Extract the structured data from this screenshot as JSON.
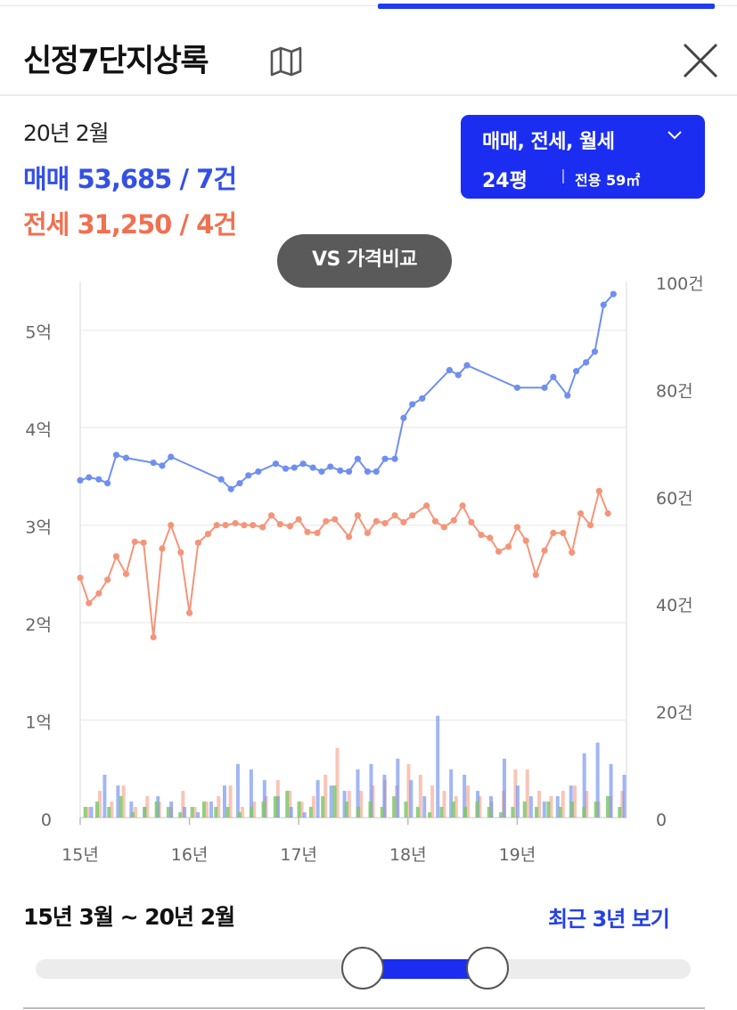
{
  "header": {
    "title": "신정7단지상록",
    "close_label": "close"
  },
  "summary": {
    "date": "20년 2월",
    "sale": "매매 53,685 / 7건",
    "jeonse": "전세 31,250 / 4건"
  },
  "filter": {
    "types": "매매, 전세, 월세",
    "size": "24평",
    "area": "전용 59㎡"
  },
  "vs_label": "VS 가격비교",
  "colors": {
    "accent": "#1a2df0",
    "sale": "#3450e6",
    "sale_line": "#6f8ff0",
    "jeonse": "#f07050",
    "jeonse_line": "#f4957a",
    "volume_green": "#7cc86a"
  },
  "icons": [
    "map-icon",
    "close-icon",
    "chevron-down-icon"
  ],
  "chart_data": {
    "type": "line",
    "x_ticks": [
      "15년",
      "16년",
      "17년",
      "18년",
      "19년"
    ],
    "y_left_ticks": [
      "0",
      "1억",
      "2억",
      "3억",
      "4억",
      "5억"
    ],
    "y_left_range": [
      0,
      5.5
    ],
    "y_right_ticks": [
      "0",
      "20건",
      "40건",
      "60건",
      "80건",
      "100건"
    ],
    "y_right_range": [
      0,
      100
    ],
    "grid": true,
    "x_range": [
      2015.0,
      2020.0
    ],
    "series": [
      {
        "key": "sale",
        "color": "#6f8ff0",
        "points": [
          [
            2015.0,
            3.46
          ],
          [
            2015.08,
            3.49
          ],
          [
            2015.17,
            3.47
          ],
          [
            2015.25,
            3.43
          ],
          [
            2015.33,
            3.72
          ],
          [
            2015.42,
            3.69
          ],
          [
            2015.67,
            3.64
          ],
          [
            2015.75,
            3.61
          ],
          [
            2015.83,
            3.7
          ],
          [
            2016.29,
            3.47
          ],
          [
            2016.38,
            3.37
          ],
          [
            2016.46,
            3.43
          ],
          [
            2016.54,
            3.51
          ],
          [
            2016.63,
            3.55
          ],
          [
            2016.79,
            3.63
          ],
          [
            2016.88,
            3.58
          ],
          [
            2016.96,
            3.59
          ],
          [
            2017.04,
            3.63
          ],
          [
            2017.13,
            3.59
          ],
          [
            2017.21,
            3.55
          ],
          [
            2017.29,
            3.6
          ],
          [
            2017.38,
            3.56
          ],
          [
            2017.46,
            3.55
          ],
          [
            2017.54,
            3.68
          ],
          [
            2017.63,
            3.55
          ],
          [
            2017.71,
            3.55
          ],
          [
            2017.79,
            3.68
          ],
          [
            2017.88,
            3.68
          ],
          [
            2017.96,
            4.1
          ],
          [
            2018.04,
            4.24
          ],
          [
            2018.13,
            4.3
          ],
          [
            2018.38,
            4.59
          ],
          [
            2018.46,
            4.54
          ],
          [
            2018.54,
            4.64
          ],
          [
            2019.0,
            4.41
          ],
          [
            2019.25,
            4.41
          ],
          [
            2019.33,
            4.52
          ],
          [
            2019.46,
            4.33
          ],
          [
            2019.54,
            4.58
          ],
          [
            2019.63,
            4.67
          ],
          [
            2019.71,
            4.78
          ],
          [
            2019.79,
            5.26
          ],
          [
            2019.88,
            5.37
          ]
        ]
      },
      {
        "key": "jeonse",
        "color": "#f4957a",
        "points": [
          [
            2015.0,
            2.46
          ],
          [
            2015.08,
            2.2
          ],
          [
            2015.17,
            2.3
          ],
          [
            2015.25,
            2.44
          ],
          [
            2015.33,
            2.68
          ],
          [
            2015.42,
            2.5
          ],
          [
            2015.5,
            2.83
          ],
          [
            2015.58,
            2.82
          ],
          [
            2015.67,
            1.85
          ],
          [
            2015.75,
            2.76
          ],
          [
            2015.83,
            3.0
          ],
          [
            2015.92,
            2.72
          ],
          [
            2016.0,
            2.1
          ],
          [
            2016.08,
            2.82
          ],
          [
            2016.17,
            2.91
          ],
          [
            2016.25,
            3.0
          ],
          [
            2016.33,
            3.0
          ],
          [
            2016.42,
            3.02
          ],
          [
            2016.5,
            3.0
          ],
          [
            2016.58,
            3.0
          ],
          [
            2016.67,
            2.98
          ],
          [
            2016.75,
            3.1
          ],
          [
            2016.83,
            3.01
          ],
          [
            2016.92,
            2.99
          ],
          [
            2017.0,
            3.06
          ],
          [
            2017.08,
            2.93
          ],
          [
            2017.17,
            2.92
          ],
          [
            2017.25,
            3.04
          ],
          [
            2017.33,
            3.06
          ],
          [
            2017.46,
            2.88
          ],
          [
            2017.54,
            3.1
          ],
          [
            2017.63,
            2.92
          ],
          [
            2017.71,
            3.04
          ],
          [
            2017.79,
            3.02
          ],
          [
            2017.88,
            3.1
          ],
          [
            2017.96,
            3.03
          ],
          [
            2018.04,
            3.1
          ],
          [
            2018.17,
            3.2
          ],
          [
            2018.25,
            3.04
          ],
          [
            2018.33,
            2.98
          ],
          [
            2018.42,
            3.05
          ],
          [
            2018.5,
            3.2
          ],
          [
            2018.58,
            3.03
          ],
          [
            2018.67,
            2.9
          ],
          [
            2018.75,
            2.87
          ],
          [
            2018.83,
            2.73
          ],
          [
            2018.92,
            2.78
          ],
          [
            2019.0,
            2.98
          ],
          [
            2019.08,
            2.84
          ],
          [
            2019.17,
            2.49
          ],
          [
            2019.25,
            2.74
          ],
          [
            2019.33,
            2.92
          ],
          [
            2019.42,
            2.92
          ],
          [
            2019.5,
            2.72
          ],
          [
            2019.58,
            3.12
          ],
          [
            2019.67,
            3.0
          ],
          [
            2019.75,
            3.35
          ],
          [
            2019.83,
            3.12
          ]
        ]
      }
    ],
    "volume": {
      "sale": [
        2,
        8,
        6,
        3,
        2,
        4,
        3,
        2,
        1,
        3,
        6,
        10,
        9,
        7,
        4,
        2,
        1,
        7,
        6,
        5,
        9,
        10,
        8,
        11,
        7,
        4,
        19,
        9,
        8,
        5,
        4,
        11,
        6,
        4,
        3,
        4,
        6,
        12,
        14,
        10,
        8
      ],
      "jeonse": [
        2,
        5,
        3,
        6,
        2,
        4,
        3,
        2,
        5,
        2,
        3,
        4,
        6,
        2,
        3,
        4,
        7,
        5,
        3,
        4,
        8,
        13,
        5,
        5,
        6,
        7,
        6,
        10,
        8,
        6,
        5,
        4,
        6,
        4,
        3,
        5,
        9,
        9,
        5,
        4,
        5,
        6,
        5,
        3,
        4,
        5
      ],
      "green": [
        2,
        3,
        2,
        4,
        1,
        2,
        3,
        2,
        1,
        2,
        3,
        2,
        2,
        1,
        2,
        3,
        4,
        5,
        3,
        2,
        4,
        6,
        3,
        2,
        3,
        2,
        4,
        3,
        2,
        1,
        2,
        3,
        2,
        3,
        2,
        1,
        2,
        3,
        2,
        3,
        2,
        3,
        2,
        3,
        4,
        2
      ]
    }
  },
  "period": {
    "range": "15년 3월 ~ 20년 2월",
    "recent": "최근 3년 보기",
    "start_fraction": 0.5,
    "end_fraction": 0.69
  }
}
